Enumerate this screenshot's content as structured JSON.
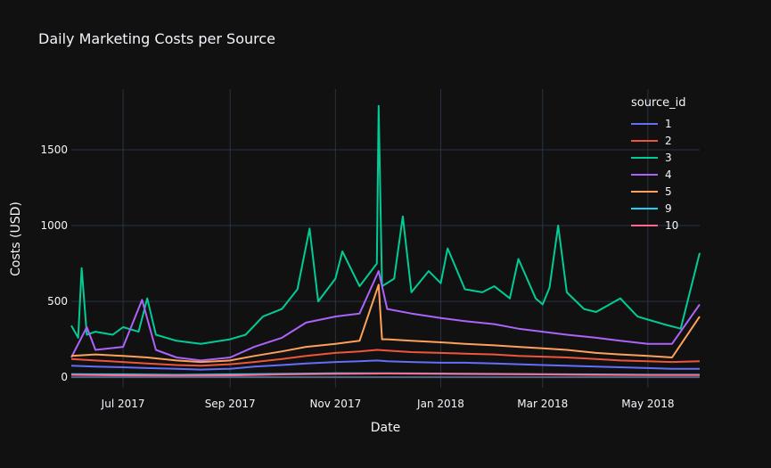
{
  "chart_data": {
    "type": "line",
    "title": "Daily Marketing Costs per Source",
    "xlabel": "Date",
    "ylabel": "Costs (USD)",
    "x_range": [
      "2017-06-01",
      "2018-05-31"
    ],
    "ylim": [
      -70,
      1900
    ],
    "x_ticks": [
      {
        "date": "2017-07-01",
        "label": "Jul 2017"
      },
      {
        "date": "2017-09-01",
        "label": "Sep 2017"
      },
      {
        "date": "2017-11-01",
        "label": "Nov 2017"
      },
      {
        "date": "2018-01-01",
        "label": "Jan 2018"
      },
      {
        "date": "2018-03-01",
        "label": "Mar 2018"
      },
      {
        "date": "2018-05-01",
        "label": "May 2018"
      }
    ],
    "y_ticks": [
      0,
      500,
      1000,
      1500
    ],
    "grid": true,
    "legend_title": "source_id",
    "legend_position": "top-right",
    "series": [
      {
        "name": "1",
        "color": "#636efa",
        "points": [
          [
            "2017-06-01",
            75
          ],
          [
            "2017-06-15",
            70
          ],
          [
            "2017-07-01",
            65
          ],
          [
            "2017-07-15",
            60
          ],
          [
            "2017-08-01",
            55
          ],
          [
            "2017-08-15",
            50
          ],
          [
            "2017-09-01",
            55
          ],
          [
            "2017-09-15",
            70
          ],
          [
            "2017-10-01",
            80
          ],
          [
            "2017-10-15",
            90
          ],
          [
            "2017-11-01",
            100
          ],
          [
            "2017-11-15",
            105
          ],
          [
            "2017-11-25",
            110
          ],
          [
            "2017-12-01",
            105
          ],
          [
            "2017-12-15",
            100
          ],
          [
            "2018-01-01",
            95
          ],
          [
            "2018-01-15",
            95
          ],
          [
            "2018-02-01",
            90
          ],
          [
            "2018-02-15",
            85
          ],
          [
            "2018-03-01",
            80
          ],
          [
            "2018-03-15",
            75
          ],
          [
            "2018-04-01",
            70
          ],
          [
            "2018-04-15",
            65
          ],
          [
            "2018-05-01",
            60
          ],
          [
            "2018-05-15",
            55
          ],
          [
            "2018-05-31",
            55
          ]
        ]
      },
      {
        "name": "2",
        "color": "#ef553b",
        "points": [
          [
            "2017-06-01",
            120
          ],
          [
            "2017-06-15",
            110
          ],
          [
            "2017-07-01",
            100
          ],
          [
            "2017-07-15",
            90
          ],
          [
            "2017-08-01",
            80
          ],
          [
            "2017-08-15",
            75
          ],
          [
            "2017-09-01",
            85
          ],
          [
            "2017-09-15",
            100
          ],
          [
            "2017-10-01",
            120
          ],
          [
            "2017-10-15",
            140
          ],
          [
            "2017-11-01",
            160
          ],
          [
            "2017-11-15",
            170
          ],
          [
            "2017-11-25",
            180
          ],
          [
            "2017-12-01",
            175
          ],
          [
            "2017-12-15",
            165
          ],
          [
            "2018-01-01",
            160
          ],
          [
            "2018-01-15",
            155
          ],
          [
            "2018-02-01",
            150
          ],
          [
            "2018-02-15",
            140
          ],
          [
            "2018-03-01",
            135
          ],
          [
            "2018-03-15",
            130
          ],
          [
            "2018-04-01",
            120
          ],
          [
            "2018-04-15",
            110
          ],
          [
            "2018-05-01",
            105
          ],
          [
            "2018-05-15",
            100
          ],
          [
            "2018-05-31",
            105
          ]
        ]
      },
      {
        "name": "3",
        "color": "#00cc96",
        "points": [
          [
            "2017-06-01",
            340
          ],
          [
            "2017-06-05",
            260
          ],
          [
            "2017-06-07",
            720
          ],
          [
            "2017-06-10",
            280
          ],
          [
            "2017-06-15",
            300
          ],
          [
            "2017-06-25",
            280
          ],
          [
            "2017-07-01",
            330
          ],
          [
            "2017-07-10",
            300
          ],
          [
            "2017-07-15",
            520
          ],
          [
            "2017-07-20",
            280
          ],
          [
            "2017-08-01",
            240
          ],
          [
            "2017-08-15",
            220
          ],
          [
            "2017-09-01",
            250
          ],
          [
            "2017-09-10",
            280
          ],
          [
            "2017-09-20",
            400
          ],
          [
            "2017-10-01",
            450
          ],
          [
            "2017-10-10",
            580
          ],
          [
            "2017-10-17",
            980
          ],
          [
            "2017-10-22",
            500
          ],
          [
            "2017-11-01",
            650
          ],
          [
            "2017-11-05",
            830
          ],
          [
            "2017-11-15",
            600
          ],
          [
            "2017-11-25",
            750
          ],
          [
            "2017-11-26",
            1790
          ],
          [
            "2017-11-28",
            600
          ],
          [
            "2017-12-05",
            650
          ],
          [
            "2017-12-10",
            1060
          ],
          [
            "2017-12-15",
            560
          ],
          [
            "2017-12-25",
            700
          ],
          [
            "2018-01-01",
            620
          ],
          [
            "2018-01-05",
            850
          ],
          [
            "2018-01-15",
            580
          ],
          [
            "2018-01-25",
            560
          ],
          [
            "2018-02-01",
            600
          ],
          [
            "2018-02-10",
            520
          ],
          [
            "2018-02-15",
            780
          ],
          [
            "2018-02-25",
            520
          ],
          [
            "2018-03-01",
            480
          ],
          [
            "2018-03-05",
            590
          ],
          [
            "2018-03-10",
            1000
          ],
          [
            "2018-03-15",
            560
          ],
          [
            "2018-03-25",
            450
          ],
          [
            "2018-04-01",
            430
          ],
          [
            "2018-04-15",
            520
          ],
          [
            "2018-04-25",
            400
          ],
          [
            "2018-05-01",
            380
          ],
          [
            "2018-05-10",
            350
          ],
          [
            "2018-05-20",
            320
          ],
          [
            "2018-05-31",
            820
          ]
        ]
      },
      {
        "name": "4",
        "color": "#ab63fa",
        "points": [
          [
            "2017-06-01",
            130
          ],
          [
            "2017-06-10",
            330
          ],
          [
            "2017-06-15",
            180
          ],
          [
            "2017-07-01",
            200
          ],
          [
            "2017-07-12",
            510
          ],
          [
            "2017-07-20",
            180
          ],
          [
            "2017-08-01",
            130
          ],
          [
            "2017-08-15",
            110
          ],
          [
            "2017-09-01",
            130
          ],
          [
            "2017-09-15",
            200
          ],
          [
            "2017-10-01",
            260
          ],
          [
            "2017-10-15",
            360
          ],
          [
            "2017-11-01",
            400
          ],
          [
            "2017-11-15",
            420
          ],
          [
            "2017-11-26",
            700
          ],
          [
            "2017-12-01",
            450
          ],
          [
            "2017-12-15",
            420
          ],
          [
            "2018-01-01",
            390
          ],
          [
            "2018-01-15",
            370
          ],
          [
            "2018-02-01",
            350
          ],
          [
            "2018-02-15",
            320
          ],
          [
            "2018-03-01",
            300
          ],
          [
            "2018-03-15",
            280
          ],
          [
            "2018-04-01",
            260
          ],
          [
            "2018-04-15",
            240
          ],
          [
            "2018-05-01",
            220
          ],
          [
            "2018-05-15",
            220
          ],
          [
            "2018-05-31",
            480
          ]
        ]
      },
      {
        "name": "5",
        "color": "#ffa15a",
        "points": [
          [
            "2017-06-01",
            140
          ],
          [
            "2017-06-15",
            150
          ],
          [
            "2017-07-01",
            140
          ],
          [
            "2017-07-15",
            130
          ],
          [
            "2017-08-01",
            110
          ],
          [
            "2017-08-15",
            100
          ],
          [
            "2017-09-01",
            110
          ],
          [
            "2017-09-15",
            140
          ],
          [
            "2017-10-01",
            170
          ],
          [
            "2017-10-15",
            200
          ],
          [
            "2017-11-01",
            220
          ],
          [
            "2017-11-15",
            240
          ],
          [
            "2017-11-26",
            610
          ],
          [
            "2017-11-28",
            250
          ],
          [
            "2017-12-01",
            250
          ],
          [
            "2017-12-15",
            240
          ],
          [
            "2018-01-01",
            230
          ],
          [
            "2018-01-15",
            220
          ],
          [
            "2018-02-01",
            210
          ],
          [
            "2018-02-15",
            200
          ],
          [
            "2018-03-01",
            190
          ],
          [
            "2018-03-15",
            180
          ],
          [
            "2018-04-01",
            160
          ],
          [
            "2018-04-15",
            150
          ],
          [
            "2018-05-01",
            140
          ],
          [
            "2018-05-15",
            130
          ],
          [
            "2018-05-31",
            400
          ]
        ]
      },
      {
        "name": "9",
        "color": "#19d3f3",
        "points": [
          [
            "2017-06-01",
            20
          ],
          [
            "2017-07-01",
            18
          ],
          [
            "2017-08-01",
            15
          ],
          [
            "2017-09-01",
            18
          ],
          [
            "2017-10-01",
            22
          ],
          [
            "2017-11-01",
            25
          ],
          [
            "2017-12-01",
            25
          ],
          [
            "2018-01-01",
            24
          ],
          [
            "2018-02-01",
            22
          ],
          [
            "2018-03-01",
            20
          ],
          [
            "2018-04-01",
            18
          ],
          [
            "2018-05-01",
            16
          ],
          [
            "2018-05-31",
            16
          ]
        ]
      },
      {
        "name": "10",
        "color": "#ff6692",
        "points": [
          [
            "2017-06-01",
            15
          ],
          [
            "2017-07-01",
            12
          ],
          [
            "2017-08-01",
            10
          ],
          [
            "2017-09-01",
            12
          ],
          [
            "2017-10-01",
            18
          ],
          [
            "2017-11-01",
            22
          ],
          [
            "2017-12-01",
            24
          ],
          [
            "2018-01-01",
            22
          ],
          [
            "2018-02-01",
            20
          ],
          [
            "2018-03-01",
            18
          ],
          [
            "2018-04-01",
            15
          ],
          [
            "2018-05-01",
            14
          ],
          [
            "2018-05-31",
            14
          ]
        ]
      }
    ]
  }
}
